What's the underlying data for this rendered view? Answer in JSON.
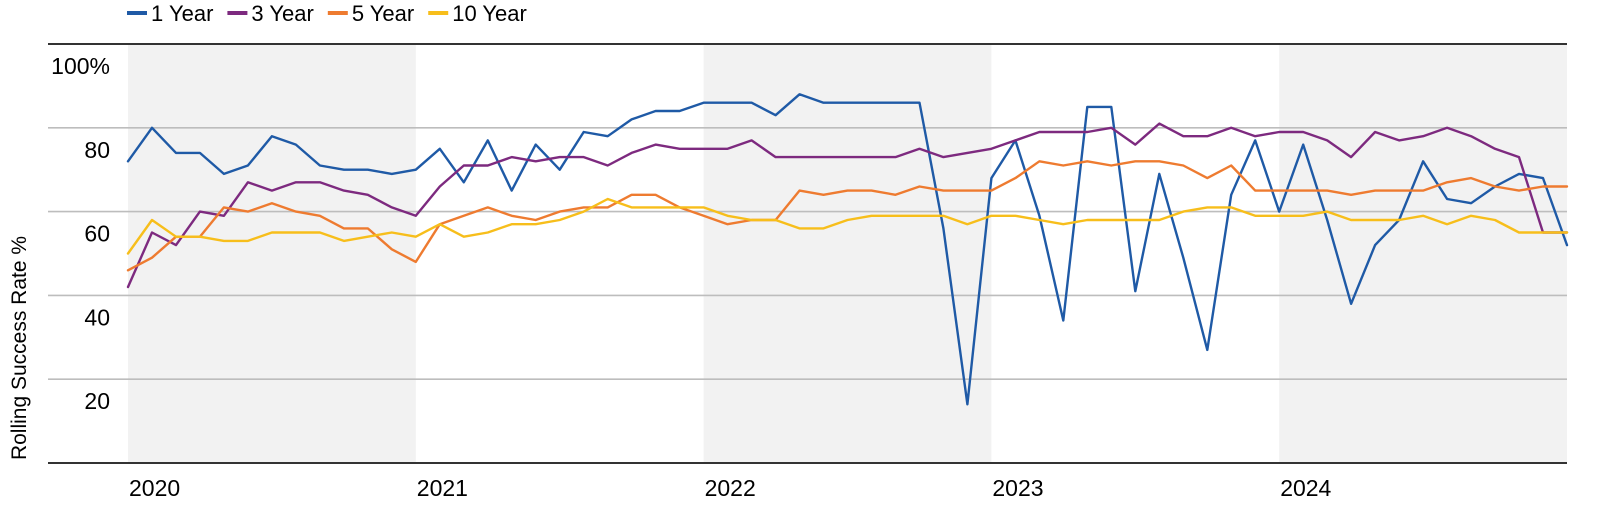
{
  "chart_data": {
    "type": "line",
    "title": "",
    "xlabel": "",
    "ylabel": "Rolling Success Rate %",
    "ylim": [
      0,
      100
    ],
    "xlim": [
      "2020-01",
      "2024-12"
    ],
    "legend_position": "top-left",
    "grid": "horizontal",
    "shaded_alternate_years": true,
    "y_ticks": [
      {
        "value": 0,
        "label": ""
      },
      {
        "value": 20,
        "label": "20"
      },
      {
        "value": 40,
        "label": "40"
      },
      {
        "value": 60,
        "label": "60"
      },
      {
        "value": 80,
        "label": "80"
      },
      {
        "value": 100,
        "label": "100%"
      }
    ],
    "x_ticks": [
      {
        "value": "2020-01",
        "label": "2020"
      },
      {
        "value": "2021-01",
        "label": "2021"
      },
      {
        "value": "2022-01",
        "label": "2022"
      },
      {
        "value": "2023-01",
        "label": "2023"
      },
      {
        "value": "2024-01",
        "label": "2024"
      }
    ],
    "x": [
      "2020-01",
      "2020-02",
      "2020-03",
      "2020-04",
      "2020-05",
      "2020-06",
      "2020-07",
      "2020-08",
      "2020-09",
      "2020-10",
      "2020-11",
      "2020-12",
      "2021-01",
      "2021-02",
      "2021-03",
      "2021-04",
      "2021-05",
      "2021-06",
      "2021-07",
      "2021-08",
      "2021-09",
      "2021-10",
      "2021-11",
      "2021-12",
      "2022-01",
      "2022-02",
      "2022-03",
      "2022-04",
      "2022-05",
      "2022-06",
      "2022-07",
      "2022-08",
      "2022-09",
      "2022-10",
      "2022-11",
      "2022-12",
      "2023-01",
      "2023-02",
      "2023-03",
      "2023-04",
      "2023-05",
      "2023-06",
      "2023-07",
      "2023-08",
      "2023-09",
      "2023-10",
      "2023-11",
      "2023-12",
      "2024-01",
      "2024-02",
      "2024-03",
      "2024-04",
      "2024-05",
      "2024-06",
      "2024-07",
      "2024-08",
      "2024-09",
      "2024-10",
      "2024-11",
      "2024-12",
      "2025-01"
    ],
    "series": [
      {
        "name": "1 Year",
        "color": "#1f5aa6",
        "values": [
          72,
          80,
          74,
          74,
          69,
          71,
          78,
          76,
          71,
          70,
          70,
          69,
          70,
          75,
          67,
          77,
          65,
          76,
          70,
          79,
          78,
          82,
          84,
          84,
          86,
          86,
          86,
          83,
          88,
          86,
          86,
          86,
          86,
          86,
          56,
          14,
          68,
          77,
          59,
          34,
          85,
          85,
          41,
          69,
          49,
          27,
          64,
          77,
          60,
          76,
          58,
          38,
          52,
          58,
          72,
          63,
          62,
          66,
          69,
          68,
          52
        ]
      },
      {
        "name": "3 Year",
        "color": "#7d2a7f",
        "values": [
          42,
          55,
          52,
          60,
          59,
          67,
          65,
          67,
          67,
          65,
          64,
          61,
          59,
          66,
          71,
          71,
          73,
          72,
          73,
          73,
          71,
          74,
          76,
          75,
          75,
          75,
          77,
          73,
          73,
          73,
          73,
          73,
          73,
          75,
          73,
          74,
          75,
          77,
          79,
          79,
          79,
          80,
          76,
          81,
          78,
          78,
          80,
          78,
          79,
          79,
          77,
          73,
          79,
          77,
          78,
          80,
          78,
          75,
          73,
          55,
          55
        ]
      },
      {
        "name": "5 Year",
        "color": "#ee7b30",
        "values": [
          46,
          49,
          54,
          54,
          61,
          60,
          62,
          60,
          59,
          56,
          56,
          51,
          48,
          57,
          59,
          61,
          59,
          58,
          60,
          61,
          61,
          64,
          64,
          61,
          59,
          57,
          58,
          58,
          65,
          64,
          65,
          65,
          64,
          66,
          65,
          65,
          65,
          68,
          72,
          71,
          72,
          71,
          72,
          72,
          71,
          68,
          71,
          65,
          65,
          65,
          65,
          64,
          65,
          65,
          65,
          67,
          68,
          66,
          65,
          66,
          66
        ]
      },
      {
        "name": "10 Year",
        "color": "#f7be1b",
        "values": [
          50,
          58,
          54,
          54,
          53,
          53,
          55,
          55,
          55,
          53,
          54,
          55,
          54,
          57,
          54,
          55,
          57,
          57,
          58,
          60,
          63,
          61,
          61,
          61,
          61,
          59,
          58,
          58,
          56,
          56,
          58,
          59,
          59,
          59,
          59,
          57,
          59,
          59,
          58,
          57,
          58,
          58,
          58,
          58,
          60,
          61,
          61,
          59,
          59,
          59,
          60,
          58,
          58,
          58,
          59,
          57,
          59,
          58,
          55,
          55,
          55
        ]
      }
    ]
  }
}
